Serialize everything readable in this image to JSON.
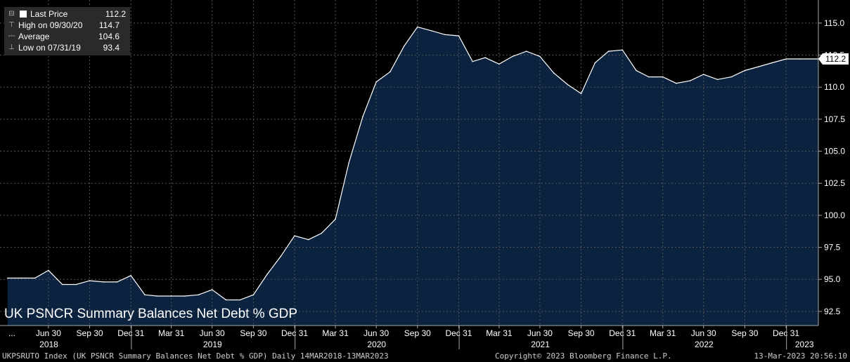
{
  "legend": {
    "rows": [
      {
        "label": "Last Price",
        "value": "112.2",
        "icon": "filled-square"
      },
      {
        "label": "High on 09/30/20",
        "value": "114.7",
        "icon": "high-marker"
      },
      {
        "label": "Average",
        "value": "104.6",
        "icon": "average-marker"
      },
      {
        "label": "Low on 07/31/19",
        "value": "93.4",
        "icon": "low-marker"
      }
    ]
  },
  "title": "UK PSNCR Summary Balances Net Debt % GDP",
  "footer": {
    "left": "UKPSRUTO Index (UK PSNCR Summary Balances Net Debt % GDP)  Daily 14MAR2018-13MAR2023",
    "center": "Copyright© 2023 Bloomberg Finance L.P.",
    "right": "13-Mar-2023 20:56:10"
  },
  "colors": {
    "background": "#000000",
    "area_fill": "#0c2340",
    "line": "#ffffff",
    "grid": "#555555",
    "last_price_tag": "#ffffff"
  },
  "chart_data": {
    "type": "area",
    "series": [
      {
        "name": "Last Price",
        "x": [
          "2018-03-31",
          "2018-04-30",
          "2018-05-31",
          "2018-06-30",
          "2018-07-31",
          "2018-08-31",
          "2018-09-30",
          "2018-10-31",
          "2018-11-30",
          "2018-12-31",
          "2019-01-31",
          "2019-02-28",
          "2019-03-31",
          "2019-04-30",
          "2019-05-31",
          "2019-06-30",
          "2019-07-31",
          "2019-08-31",
          "2019-09-30",
          "2019-10-31",
          "2019-11-30",
          "2019-12-31",
          "2020-01-31",
          "2020-02-29",
          "2020-03-31",
          "2020-04-30",
          "2020-05-31",
          "2020-06-30",
          "2020-07-31",
          "2020-08-31",
          "2020-09-30",
          "2020-10-31",
          "2020-11-30",
          "2020-12-31",
          "2021-01-31",
          "2021-02-28",
          "2021-03-31",
          "2021-04-30",
          "2021-05-31",
          "2021-06-30",
          "2021-07-31",
          "2021-08-31",
          "2021-09-30",
          "2021-10-31",
          "2021-11-30",
          "2021-12-31",
          "2022-01-31",
          "2022-02-28",
          "2022-03-31",
          "2022-04-30",
          "2022-05-31",
          "2022-06-30",
          "2022-07-31",
          "2022-08-31",
          "2022-09-30",
          "2022-10-31",
          "2022-11-30",
          "2022-12-31",
          "2023-01-31",
          "2023-03-13"
        ],
        "values": [
          95.1,
          95.1,
          95.1,
          95.7,
          94.6,
          94.6,
          94.9,
          94.8,
          94.8,
          95.3,
          93.8,
          93.7,
          93.7,
          93.7,
          93.8,
          94.2,
          93.4,
          93.4,
          93.8,
          95.4,
          96.8,
          98.4,
          98.1,
          98.6,
          99.7,
          104.1,
          107.7,
          110.4,
          111.2,
          113.2,
          114.7,
          114.4,
          114.1,
          114.0,
          112.0,
          112.3,
          111.8,
          112.4,
          112.8,
          112.4,
          111.1,
          110.2,
          109.5,
          111.9,
          112.8,
          112.9,
          111.3,
          110.8,
          110.8,
          110.3,
          110.5,
          111.0,
          110.6,
          110.8,
          111.3,
          111.6,
          111.9,
          112.2,
          112.2,
          112.2
        ]
      }
    ],
    "ylim": [
      91.4,
      116.8
    ],
    "yticks": [
      "92.5",
      "95.0",
      "97.5",
      "100.0",
      "102.5",
      "105.0",
      "107.5",
      "110.0",
      "112.5",
      "115.0"
    ],
    "xtick_labels": [
      "...",
      "Jun 30",
      "Sep 30",
      "Dec 31",
      "Mar 31",
      "Jun 30",
      "Sep 30",
      "Dec 31",
      "Mar 31",
      "Jun 30",
      "Sep 30",
      "Dec 31",
      "Mar 31",
      "Jun 30",
      "Sep 30",
      "Dec 31",
      "Mar 31",
      "Jun 30",
      "Sep 30",
      "Dec 31"
    ],
    "xtick_dates": [
      null,
      "2018-06-30",
      "2018-09-30",
      "2018-12-31",
      "2019-03-31",
      "2019-06-30",
      "2019-09-30",
      "2019-12-31",
      "2020-03-31",
      "2020-06-30",
      "2020-09-30",
      "2020-12-31",
      "2021-03-31",
      "2021-06-30",
      "2021-09-30",
      "2021-12-31",
      "2022-03-31",
      "2022-06-30",
      "2022-09-30",
      "2022-12-31"
    ],
    "year_labels": [
      "2018",
      "2019",
      "2020",
      "2021",
      "2022",
      "2023"
    ],
    "year_dates": [
      "2018-07-01",
      "2019-07-01",
      "2020-07-01",
      "2021-07-01",
      "2022-07-01",
      "2023-02-10"
    ],
    "year_boundaries": [
      "2019-01-01",
      "2020-01-01",
      "2021-01-01",
      "2022-01-01",
      "2023-01-01"
    ],
    "x_range": [
      "2018-03-14",
      "2023-03-13"
    ],
    "last_value_label": "112.2",
    "grid": true
  }
}
